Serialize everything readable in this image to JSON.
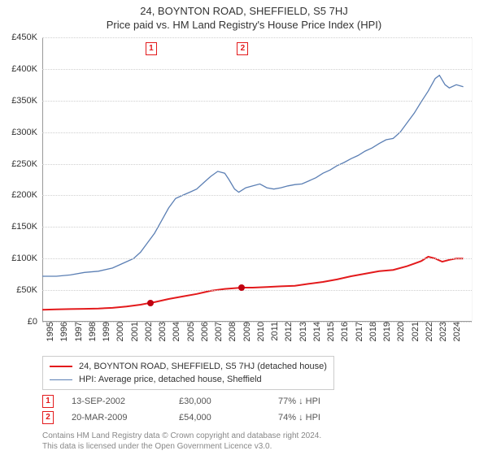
{
  "title_line1": "24, BOYNTON ROAD, SHEFFIELD, S5 7HJ",
  "title_line2": "Price paid vs. HM Land Registry's House Price Index (HPI)",
  "chart": {
    "type": "line",
    "x_min": 1995,
    "x_max": 2025.6,
    "y_min": 0,
    "y_max": 450000,
    "y_ticks": [
      0,
      50000,
      100000,
      150000,
      200000,
      250000,
      300000,
      350000,
      400000,
      450000
    ],
    "y_tick_labels": [
      "£0",
      "£50K",
      "£100K",
      "£150K",
      "£200K",
      "£250K",
      "£300K",
      "£350K",
      "£400K",
      "£450K"
    ],
    "x_ticks": [
      1995,
      1996,
      1997,
      1998,
      1999,
      2000,
      2001,
      2002,
      2003,
      2004,
      2005,
      2006,
      2007,
      2008,
      2009,
      2010,
      2011,
      2012,
      2013,
      2014,
      2015,
      2016,
      2017,
      2018,
      2019,
      2020,
      2021,
      2022,
      2023,
      2024
    ],
    "grid_color": "#cfcfcf",
    "axis_color": "#999999",
    "background_color": "#ffffff",
    "band_color": "rgba(200,215,235,0.35)",
    "shade_start_year": 2024.3,
    "title_fontsize": 13,
    "tick_fontsize": 11,
    "series": {
      "property": {
        "label": "24, BOYNTON ROAD, SHEFFIELD, S5 7HJ (detached house)",
        "color": "#e31a1c",
        "width": 2,
        "points": [
          [
            1995,
            19000
          ],
          [
            1996,
            19500
          ],
          [
            1997,
            20000
          ],
          [
            1998,
            20500
          ],
          [
            1999,
            21000
          ],
          [
            2000,
            22000
          ],
          [
            2001,
            24000
          ],
          [
            2002,
            27000
          ],
          [
            2002.7,
            30000
          ],
          [
            2003,
            31000
          ],
          [
            2004,
            36000
          ],
          [
            2005,
            40000
          ],
          [
            2006,
            44000
          ],
          [
            2007,
            49000
          ],
          [
            2008,
            52000
          ],
          [
            2009.22,
            54000
          ],
          [
            2010,
            54000
          ],
          [
            2011,
            55000
          ],
          [
            2012,
            56000
          ],
          [
            2013,
            57000
          ],
          [
            2014,
            60000
          ],
          [
            2015,
            63000
          ],
          [
            2016,
            67000
          ],
          [
            2017,
            72000
          ],
          [
            2018,
            76000
          ],
          [
            2019,
            80000
          ],
          [
            2020,
            82000
          ],
          [
            2021,
            88000
          ],
          [
            2022,
            96000
          ],
          [
            2022.5,
            103000
          ],
          [
            2023,
            100000
          ],
          [
            2023.5,
            95000
          ],
          [
            2024,
            98000
          ],
          [
            2024.5,
            100000
          ],
          [
            2025,
            100000
          ]
        ]
      },
      "hpi": {
        "label": "HPI: Average price, detached house, Sheffield",
        "color": "#5b7fb4",
        "width": 1.3,
        "points": [
          [
            1995,
            72000
          ],
          [
            1996,
            72000
          ],
          [
            1997,
            74000
          ],
          [
            1998,
            78000
          ],
          [
            1999,
            80000
          ],
          [
            2000,
            85000
          ],
          [
            2000.5,
            90000
          ],
          [
            2001,
            95000
          ],
          [
            2001.5,
            100000
          ],
          [
            2002,
            110000
          ],
          [
            2002.5,
            125000
          ],
          [
            2003,
            140000
          ],
          [
            2003.5,
            160000
          ],
          [
            2004,
            180000
          ],
          [
            2004.5,
            195000
          ],
          [
            2005,
            200000
          ],
          [
            2005.5,
            205000
          ],
          [
            2006,
            210000
          ],
          [
            2006.5,
            220000
          ],
          [
            2007,
            230000
          ],
          [
            2007.5,
            238000
          ],
          [
            2008,
            235000
          ],
          [
            2008.3,
            225000
          ],
          [
            2008.7,
            210000
          ],
          [
            2009,
            205000
          ],
          [
            2009.5,
            212000
          ],
          [
            2010,
            215000
          ],
          [
            2010.5,
            218000
          ],
          [
            2011,
            212000
          ],
          [
            2011.5,
            210000
          ],
          [
            2012,
            212000
          ],
          [
            2012.5,
            215000
          ],
          [
            2013,
            217000
          ],
          [
            2013.5,
            218000
          ],
          [
            2014,
            223000
          ],
          [
            2014.5,
            228000
          ],
          [
            2015,
            235000
          ],
          [
            2015.5,
            240000
          ],
          [
            2016,
            247000
          ],
          [
            2016.5,
            252000
          ],
          [
            2017,
            258000
          ],
          [
            2017.5,
            263000
          ],
          [
            2018,
            270000
          ],
          [
            2018.5,
            275000
          ],
          [
            2019,
            282000
          ],
          [
            2019.5,
            288000
          ],
          [
            2020,
            290000
          ],
          [
            2020.5,
            300000
          ],
          [
            2021,
            315000
          ],
          [
            2021.5,
            330000
          ],
          [
            2022,
            348000
          ],
          [
            2022.5,
            365000
          ],
          [
            2023,
            385000
          ],
          [
            2023.3,
            390000
          ],
          [
            2023.7,
            375000
          ],
          [
            2024,
            370000
          ],
          [
            2024.5,
            375000
          ],
          [
            2025,
            372000
          ]
        ]
      }
    },
    "sale_markers": [
      {
        "n": "1",
        "year": 2002.7,
        "price": 30000,
        "band_start": 2002.0,
        "band_end": 2003.4
      },
      {
        "n": "2",
        "year": 2009.22,
        "price": 54000,
        "band_start": 2008.5,
        "band_end": 2009.9
      }
    ],
    "marker_box_color": "#e31a1c",
    "dot_color": "#c00010"
  },
  "legend": {
    "rows": [
      {
        "color": "#e31a1c",
        "width": 2,
        "label_path": "chart.series.property.label"
      },
      {
        "color": "#5b7fb4",
        "width": 1.3,
        "label_path": "chart.series.hpi.label"
      }
    ]
  },
  "sales_table": {
    "rows": [
      {
        "n": "1",
        "date": "13-SEP-2002",
        "price": "£30,000",
        "delta": "77% ↓ HPI"
      },
      {
        "n": "2",
        "date": "20-MAR-2009",
        "price": "£54,000",
        "delta": "74% ↓ HPI"
      }
    ]
  },
  "footer_line1": "Contains HM Land Registry data © Crown copyright and database right 2024.",
  "footer_line2": "This data is licensed under the Open Government Licence v3.0."
}
